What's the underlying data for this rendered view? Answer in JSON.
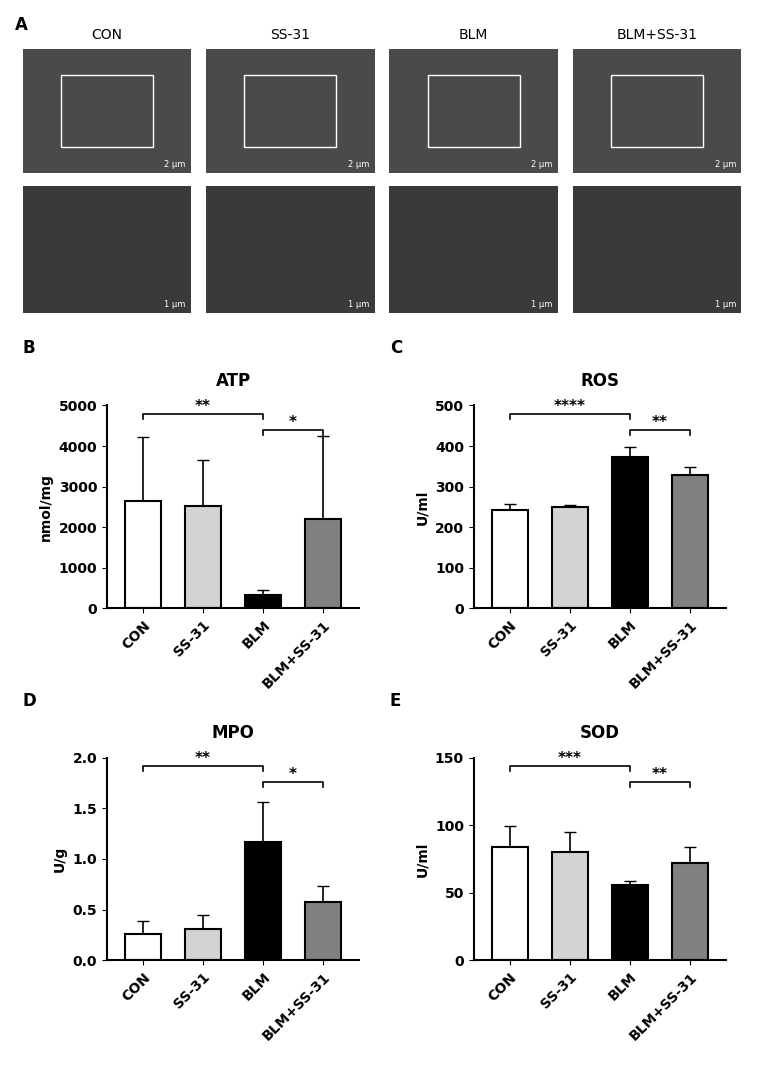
{
  "panel_A": {
    "panel_label": "A",
    "groups": [
      "CON",
      "SS-31",
      "BLM",
      "BLM+SS-31"
    ],
    "scale_bars": [
      "2 μm",
      "1 μm"
    ]
  },
  "chart_data": [
    {
      "type": "bar",
      "panel_label": "B",
      "title": "ATP",
      "y_label": "nmol/mg",
      "categories": [
        "CON",
        "SS-31",
        "BLM",
        "BLM+SS-31"
      ],
      "values": [
        2650,
        2520,
        330,
        2200
      ],
      "errors": [
        1570,
        1130,
        120,
        2040
      ],
      "colors": [
        "#ffffff",
        "#d3d3d3",
        "#000000",
        "#808080"
      ],
      "ylim": [
        0,
        5000
      ],
      "yticks": [
        0,
        1000,
        2000,
        3000,
        4000,
        5000
      ],
      "significance": [
        {
          "from": "CON",
          "to": "BLM",
          "label": "**"
        },
        {
          "from": "BLM",
          "to": "BLM+SS-31",
          "label": "*"
        }
      ]
    },
    {
      "type": "bar",
      "panel_label": "C",
      "title": "ROS",
      "y_label": "U/ml",
      "categories": [
        "CON",
        "SS-31",
        "BLM",
        "BLM+SS-31"
      ],
      "values": [
        243,
        249,
        373,
        328
      ],
      "errors": [
        14,
        5,
        24,
        20
      ],
      "colors": [
        "#ffffff",
        "#d3d3d3",
        "#000000",
        "#808080"
      ],
      "ylim": [
        0,
        500
      ],
      "yticks": [
        0,
        100,
        200,
        300,
        400,
        500
      ],
      "significance": [
        {
          "from": "CON",
          "to": "BLM",
          "label": "****"
        },
        {
          "from": "BLM",
          "to": "BLM+SS-31",
          "label": "**"
        }
      ]
    },
    {
      "type": "bar",
      "panel_label": "D",
      "title": "MPO",
      "y_label": "U/g",
      "categories": [
        "CON",
        "SS-31",
        "BLM",
        "BLM+SS-31"
      ],
      "values": [
        0.26,
        0.31,
        1.17,
        0.58
      ],
      "errors": [
        0.13,
        0.14,
        0.39,
        0.15
      ],
      "colors": [
        "#ffffff",
        "#d3d3d3",
        "#000000",
        "#808080"
      ],
      "ylim": [
        0,
        2.0
      ],
      "yticks": [
        {
          "value": 0,
          "label": "0.0"
        },
        0.5,
        {
          "value": 1,
          "label": "1.0"
        },
        1.5,
        {
          "value": 2,
          "label": "2.0"
        }
      ],
      "significance": [
        {
          "from": "CON",
          "to": "BLM",
          "label": "**"
        },
        {
          "from": "BLM",
          "to": "BLM+SS-31",
          "label": "*"
        }
      ]
    },
    {
      "type": "bar",
      "panel_label": "E",
      "title": "SOD",
      "y_label": "U/ml",
      "categories": [
        "CON",
        "SS-31",
        "BLM",
        "BLM+SS-31"
      ],
      "values": [
        84,
        80,
        56,
        72
      ],
      "errors": [
        15,
        15,
        3,
        12
      ],
      "colors": [
        "#ffffff",
        "#d3d3d3",
        "#000000",
        "#808080"
      ],
      "ylim": [
        0,
        150
      ],
      "yticks": [
        0,
        50,
        100,
        150
      ],
      "significance": [
        {
          "from": "CON",
          "to": "BLM",
          "label": "***"
        },
        {
          "from": "BLM",
          "to": "BLM+SS-31",
          "label": "**"
        }
      ]
    }
  ]
}
